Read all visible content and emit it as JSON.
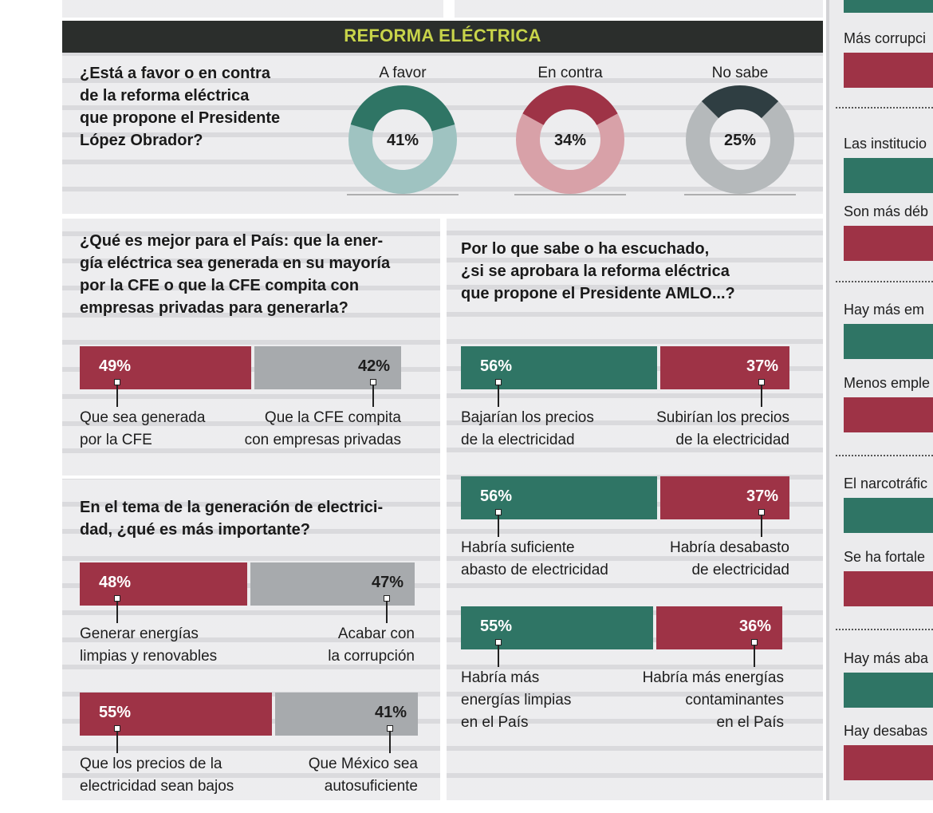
{
  "header": {
    "title": "REFORMA ELÉCTRICA"
  },
  "colors": {
    "red": "#9e3346",
    "green": "#2f7565",
    "gray": "#a7aaad",
    "title": "#c8d44a",
    "darkbar": "#2b2e2c"
  },
  "q1": {
    "question": [
      "¿Está a favor o en contra",
      "de la reforma eléctrica",
      "que propone el Presidente",
      "López Obrador?"
    ]
  },
  "q2": {
    "question": [
      "¿Qué es mejor para el País: que la ener-",
      "gía eléctrica sea generada en su mayoría",
      "por la CFE o que la CFE compita con",
      "empresas privadas para generarla?"
    ],
    "left_label": [
      "Que sea generada",
      "por la CFE"
    ],
    "right_label": [
      "Que la CFE compita",
      "con empresas privadas"
    ]
  },
  "q3": {
    "question": [
      "En el tema de la generación de electrici-",
      "dad, ¿qué es más importante?"
    ],
    "pair1_left": [
      "Generar energías",
      "limpias y renovables"
    ],
    "pair1_right": [
      "Acabar con",
      "la corrupción"
    ],
    "pair2_left": [
      "Que los precios de la",
      "electricidad sean bajos"
    ],
    "pair2_right": [
      "Que México sea",
      "autosuficiente"
    ]
  },
  "q4": {
    "question": [
      "Por lo que sabe o ha escuchado,",
      "¿si se aprobara la reforma eléctrica",
      "que propone el Presidente AMLO...?"
    ],
    "pair1_left": [
      "Bajarían los precios",
      "de la electricidad"
    ],
    "pair1_right": [
      "Subirían los precios",
      "de la electricidad"
    ],
    "pair2_left": [
      "Habría suficiente",
      "abasto de electricidad"
    ],
    "pair2_right": [
      "Habría desabasto",
      "de electricidad"
    ],
    "pair3_left": [
      "Habría más",
      "energías limpias",
      "en el País"
    ],
    "pair3_right": [
      "Habría más energías",
      "contaminantes",
      "en el País"
    ]
  },
  "side": {
    "labels": [
      "Más corrupci",
      "Las institucio",
      "Son más déb",
      "Hay más em",
      "Menos emple",
      "El narcotráfic",
      "Se ha fortale",
      "Hay más aba",
      "Hay desabas"
    ]
  },
  "chart_data": [
    {
      "type": "pie",
      "title": "¿Está a favor o en contra de la reforma eléctrica que propone el Presidente López Obrador?",
      "categories": [
        "A favor",
        "En contra",
        "No sabe"
      ],
      "values": [
        41,
        34,
        25
      ],
      "unit": "%"
    },
    {
      "type": "bar",
      "title": "¿Qué es mejor para el País?",
      "categories": [
        "Que sea generada por la CFE",
        "Que la CFE compita con empresas privadas"
      ],
      "values": [
        49,
        42
      ],
      "unit": "%"
    },
    {
      "type": "bar",
      "title": "En el tema de la generación de electricidad, ¿qué es más importante?",
      "pairs": [
        {
          "categories": [
            "Generar energías limpias y renovables",
            "Acabar con la corrupción"
          ],
          "values": [
            48,
            47
          ]
        },
        {
          "categories": [
            "Que los precios de la electricidad sean bajos",
            "Que México sea autosuficiente"
          ],
          "values": [
            55,
            41
          ]
        }
      ],
      "unit": "%"
    },
    {
      "type": "bar",
      "title": "¿si se aprobara la reforma eléctrica que propone el Presidente AMLO...?",
      "pairs": [
        {
          "categories": [
            "Bajarían los precios de la electricidad",
            "Subirían los precios de la electricidad"
          ],
          "values": [
            56,
            37
          ]
        },
        {
          "categories": [
            "Habría suficiente abasto de electricidad",
            "Habría desabasto de electricidad"
          ],
          "values": [
            56,
            37
          ]
        },
        {
          "categories": [
            "Habría más energías limpias en el País",
            "Habría más energías contaminantes en el País"
          ],
          "values": [
            55,
            36
          ]
        }
      ],
      "unit": "%"
    }
  ]
}
